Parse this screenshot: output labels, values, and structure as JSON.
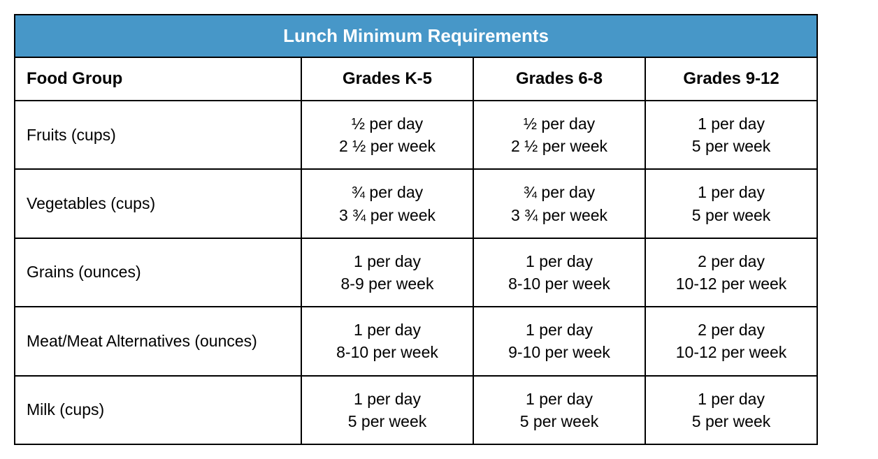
{
  "title": "Lunch Minimum Requirements",
  "colors": {
    "header_bg": "#4797c8",
    "header_text": "#ffffff",
    "border": "#000000",
    "body_text": "#000000"
  },
  "columns": {
    "food_group": "Food Group",
    "grades_k5": "Grades K-5",
    "grades_68": "Grades 6-8",
    "grades_912": "Grades 9-12"
  },
  "rows": [
    {
      "label": "Fruits (cups)",
      "k5_day": "½ per day",
      "k5_week": "2 ½ per week",
      "g68_day": "½ per day",
      "g68_week": "2 ½ per week",
      "g912_day": "1 per day",
      "g912_week": "5 per week"
    },
    {
      "label": "Vegetables (cups)",
      "k5_day": "¾ per day",
      "k5_week": "3 ¾ per week",
      "g68_day": "¾ per day",
      "g68_week": "3 ¾ per week",
      "g912_day": "1 per day",
      "g912_week": "5 per week"
    },
    {
      "label": "Grains (ounces)",
      "k5_day": "1 per day",
      "k5_week": "8-9 per week",
      "g68_day": "1 per day",
      "g68_week": "8-10 per week",
      "g912_day": "2 per day",
      "g912_week": "10-12 per week"
    },
    {
      "label": "Meat/Meat Alternatives (ounces)",
      "k5_day": "1 per day",
      "k5_week": "8-10 per week",
      "g68_day": "1 per day",
      "g68_week": "9-10 per week",
      "g912_day": "2 per day",
      "g912_week": "10-12 per week"
    },
    {
      "label": "Milk (cups)",
      "k5_day": "1 per day",
      "k5_week": "5 per week",
      "g68_day": "1 per day",
      "g68_week": "5 per week",
      "g912_day": "1 per day",
      "g912_week": "5 per week"
    }
  ]
}
